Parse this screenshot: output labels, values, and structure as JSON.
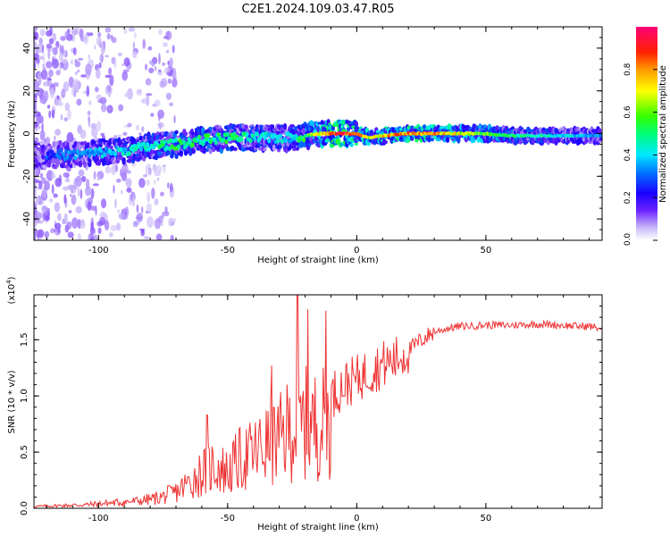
{
  "figure": {
    "title": "C2E1.2024.109.03.47.R05"
  },
  "chart_data": [
    {
      "type": "heatmap",
      "title": "C2E1.2024.109.03.47.R05",
      "xlabel": "Height of straight line (km)",
      "ylabel": "Frequency (Hz)",
      "xlim": [
        -125,
        95
      ],
      "ylim": [
        -50,
        50
      ],
      "xticks": [
        -100,
        -50,
        0,
        50
      ],
      "yticks": [
        -40,
        -20,
        0,
        20,
        40
      ],
      "colorbar": {
        "label": "Normalized spectral amplitude",
        "range": [
          0.0,
          1.0
        ],
        "ticks": [
          "0.0",
          "0.2",
          "0.4",
          "0.6",
          "0.8"
        ],
        "colormap": [
          "#ffffff",
          "#b8a6f8",
          "#2a00ff",
          "#0066ff",
          "#00e8ff",
          "#00ff66",
          "#7aff00",
          "#ffff00",
          "#ff8800",
          "#ff0000",
          "#ff0066"
        ]
      },
      "ridge": {
        "x": [
          -120,
          -110,
          -100,
          -90,
          -80,
          -70,
          -60,
          -50,
          -40,
          -30,
          -25,
          -20,
          -15,
          -10,
          -5,
          0,
          5,
          10,
          20,
          30,
          40,
          50,
          60,
          70,
          80,
          90,
          95
        ],
        "frequency": [
          -10,
          -10,
          -9,
          -8,
          -6,
          -5,
          -3,
          -2,
          -2,
          -2,
          -2,
          -1,
          0,
          0,
          0,
          0,
          -2,
          -1,
          0,
          0,
          0,
          0,
          -1,
          -1,
          -1,
          -1,
          -1
        ],
        "amplitude": [
          0.3,
          0.35,
          0.4,
          0.45,
          0.5,
          0.55,
          0.55,
          0.55,
          0.5,
          0.45,
          0.45,
          0.6,
          0.75,
          0.95,
          0.95,
          0.9,
          0.7,
          0.85,
          0.9,
          0.85,
          0.75,
          0.65,
          0.55,
          0.5,
          0.45,
          0.4,
          0.4
        ]
      }
    },
    {
      "type": "line",
      "xlabel": "Height of straight line (km)",
      "ylabel": "SNR (10 * v/v)",
      "y_multiplier": "(x10^4)",
      "xlim": [
        -125,
        95
      ],
      "ylim": [
        0,
        1.9
      ],
      "xticks": [
        -100,
        -50,
        0,
        50
      ],
      "yticks": [
        "0.0",
        "0.5",
        "1.0",
        "1.5"
      ],
      "color": "#ee3333",
      "series": [
        {
          "x": [
            -125,
            -115,
            -105,
            -95,
            -85,
            -80,
            -75,
            -70,
            -65,
            -60,
            -55,
            -50,
            -45,
            -40,
            -35,
            -30,
            -27,
            -25,
            -22,
            -20,
            -18,
            -15,
            -12,
            -10,
            -5,
            0,
            5,
            10,
            15,
            20,
            25,
            30,
            35,
            40,
            50,
            60,
            70,
            80,
            85,
            90,
            95
          ],
          "y": [
            0.02,
            0.03,
            0.04,
            0.06,
            0.08,
            0.1,
            0.13,
            0.18,
            0.28,
            0.4,
            0.48,
            0.4,
            0.55,
            0.6,
            0.7,
            0.75,
            0.85,
            0.9,
            0.9,
            0.95,
            0.9,
            0.95,
            0.95,
            1.0,
            1.1,
            1.15,
            1.22,
            1.28,
            1.32,
            1.4,
            1.5,
            1.57,
            1.6,
            1.62,
            1.63,
            1.63,
            1.64,
            1.63,
            1.62,
            1.62,
            1.6
          ]
        }
      ],
      "spikes": [
        {
          "x": -58,
          "y": 0.83
        },
        {
          "x": -33,
          "y": 1.27
        },
        {
          "x": -23,
          "y": 1.9
        },
        {
          "x": -19,
          "y": 1.77
        },
        {
          "x": -12,
          "y": 1.76
        }
      ]
    }
  ]
}
